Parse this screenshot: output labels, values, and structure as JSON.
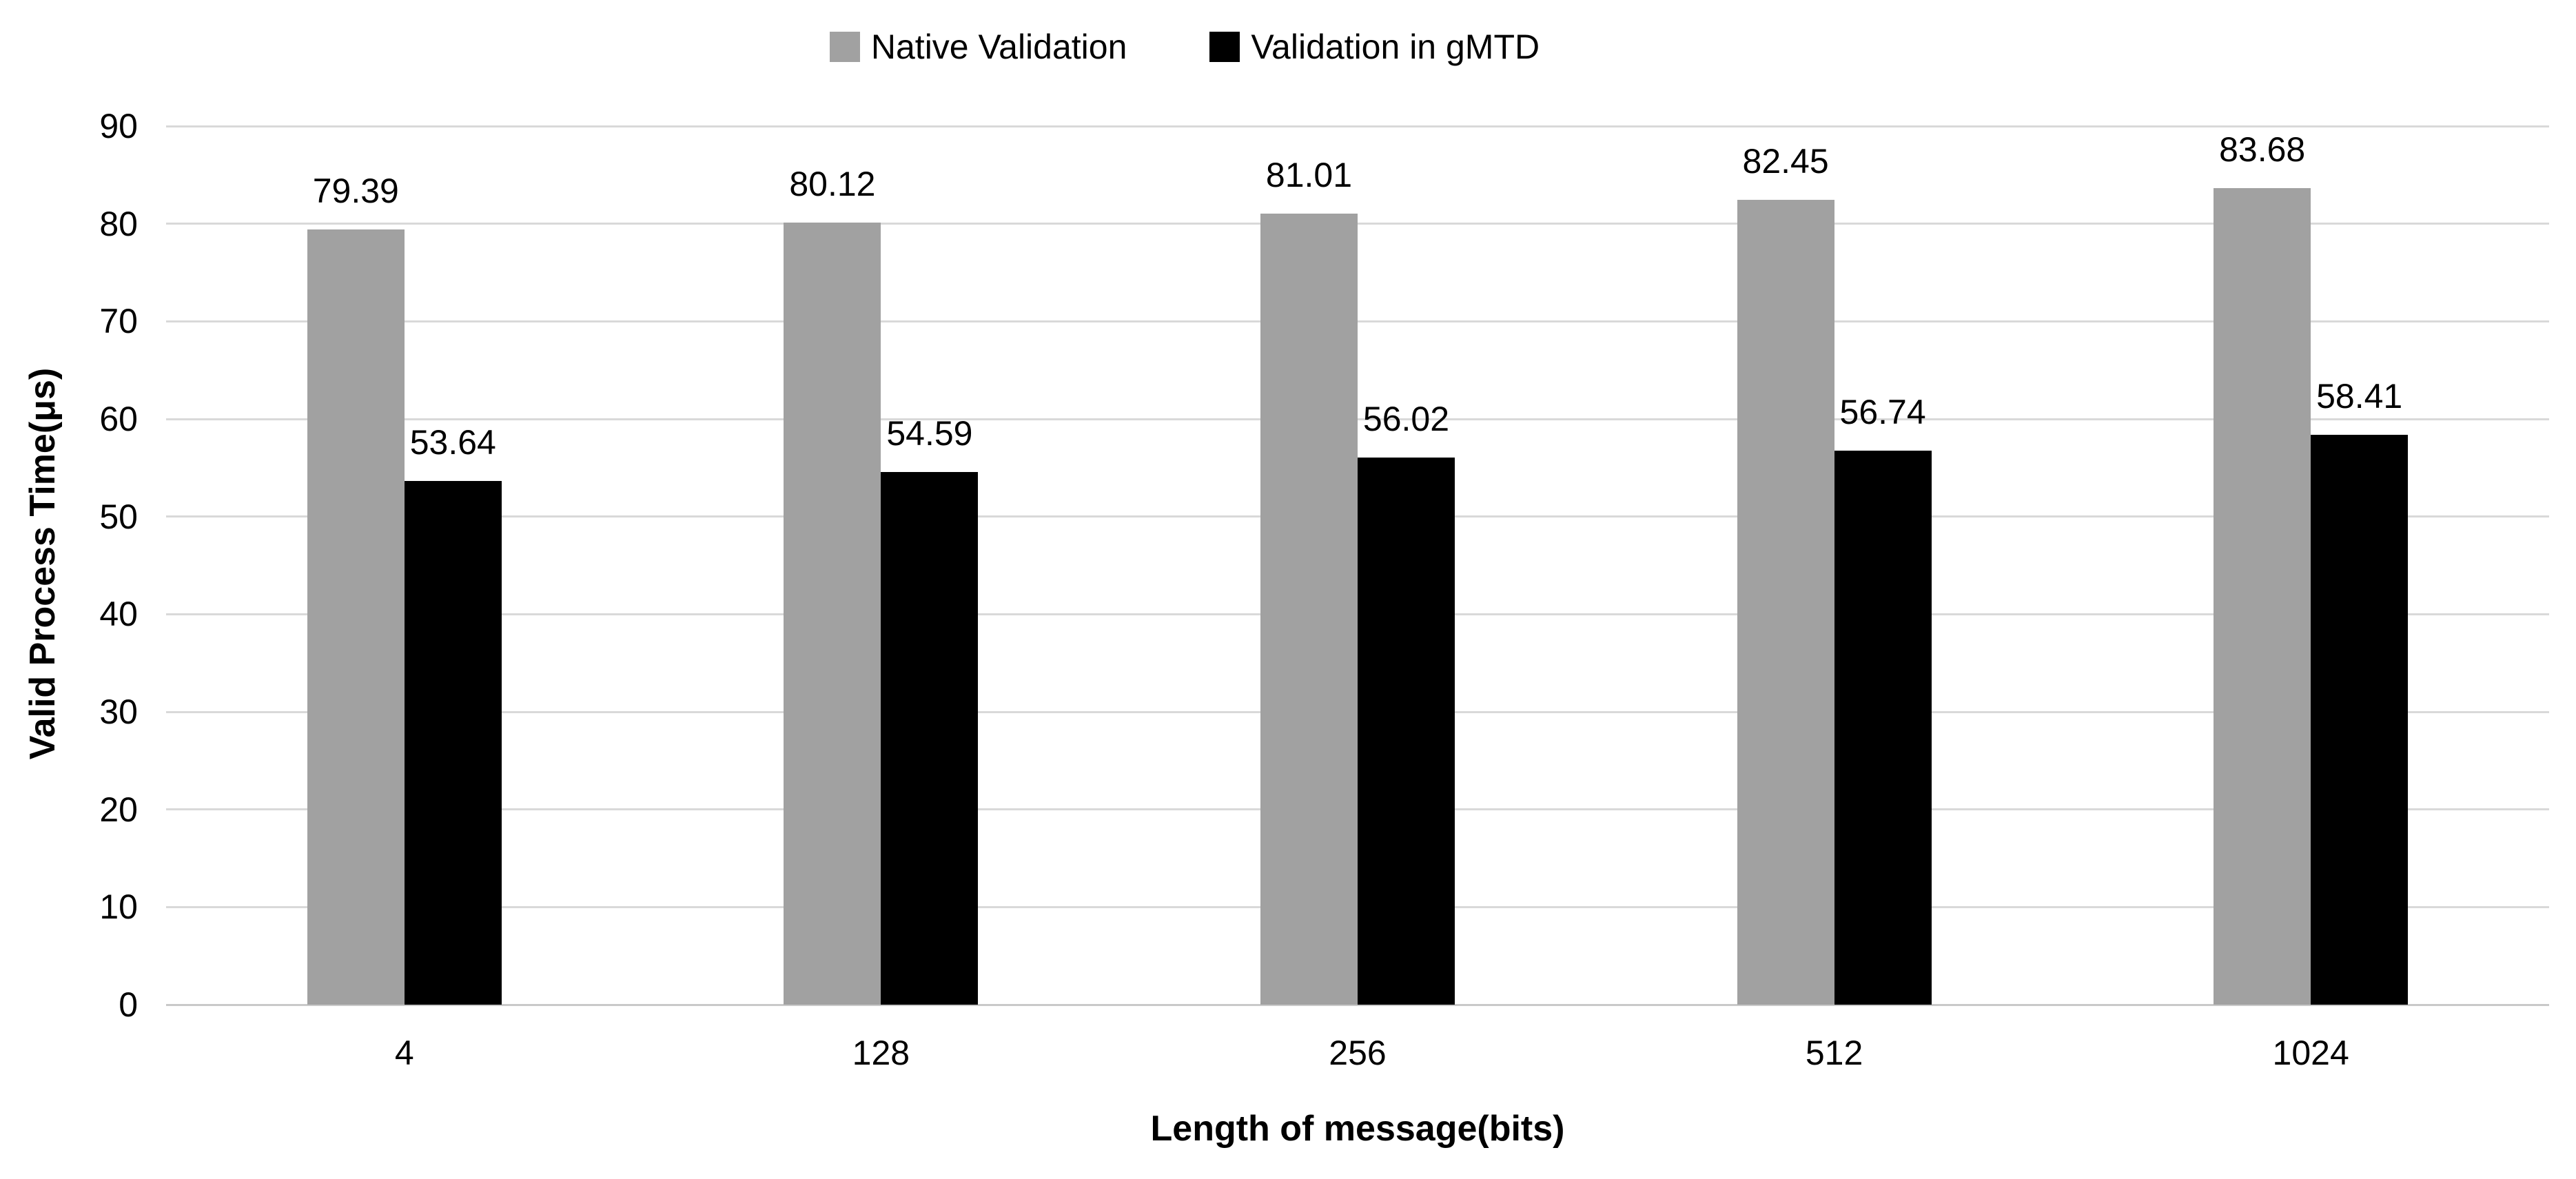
{
  "chart_data": {
    "type": "bar",
    "title": "",
    "categories": [
      "4",
      "128",
      "256",
      "512",
      "1024"
    ],
    "series": [
      {
        "name": "Native Validation",
        "color": "#A1A1A1",
        "values": [
          79.39,
          80.12,
          81.01,
          82.45,
          83.68
        ]
      },
      {
        "name": "Validation in gMTD",
        "color": "#000000",
        "values": [
          53.64,
          54.59,
          56.02,
          56.74,
          58.41
        ]
      }
    ],
    "xlabel": "Length of message(bits)",
    "ylabel": "Valid Process Time(μs)",
    "ylim": [
      0,
      90
    ],
    "ytick_step": 10,
    "grid": "horizontal",
    "gridline_color": "#D9D9D9",
    "legend_position": "top",
    "value_label_decimals": 2,
    "background": "#FFFFFF",
    "text_color": "#000000"
  }
}
